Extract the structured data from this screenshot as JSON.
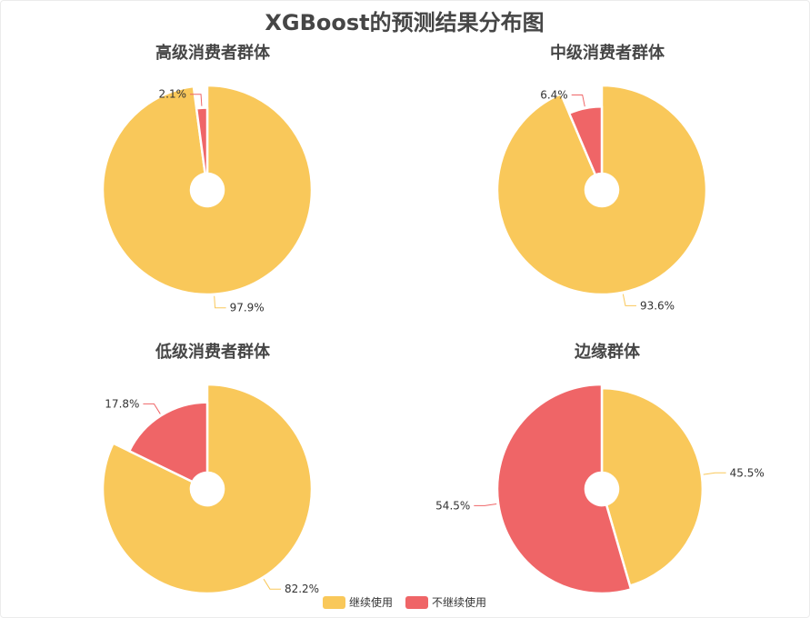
{
  "colors": {
    "continue": "#F9C85A",
    "stop": "#EF6567"
  },
  "chart_data": {
    "type": "pie",
    "title": "XGBoost的预测结果分布图",
    "legend": {
      "position": "bottom-center",
      "items": [
        "继续使用",
        "不继续使用"
      ]
    },
    "charts": [
      {
        "title": "高级消费者群体",
        "categories": [
          "继续使用",
          "不继续使用"
        ],
        "values": [
          97.9,
          2.1
        ],
        "labels": [
          "97.9%",
          "2.1%"
        ]
      },
      {
        "title": "中级消费者群体",
        "categories": [
          "继续使用",
          "不继续使用"
        ],
        "values": [
          93.6,
          6.4
        ],
        "labels": [
          "93.6%",
          "6.4%"
        ]
      },
      {
        "title": "低级消费者群体",
        "categories": [
          "继续使用",
          "不继续使用"
        ],
        "values": [
          82.2,
          17.8
        ],
        "labels": [
          "82.2%",
          "17.8%"
        ]
      },
      {
        "title": "边缘群体",
        "categories": [
          "继续使用",
          "不继续使用"
        ],
        "values": [
          45.5,
          54.5
        ],
        "labels": [
          "45.5%",
          "54.5%"
        ]
      }
    ]
  }
}
